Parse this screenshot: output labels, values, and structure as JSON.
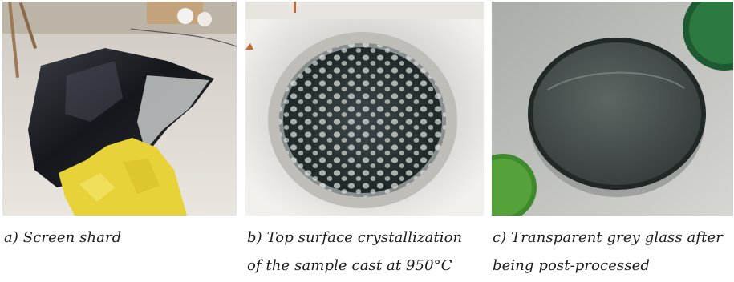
{
  "figures": [
    {
      "id": "a",
      "caption_lines": [
        "a) Screen shard"
      ]
    },
    {
      "id": "b",
      "caption_lines": [
        "b) Top surface crystallization",
        "of the sample cast at 950°C"
      ]
    },
    {
      "id": "c",
      "caption_lines": [
        "c) Transparent grey glass after",
        "being post-processed"
      ]
    }
  ]
}
